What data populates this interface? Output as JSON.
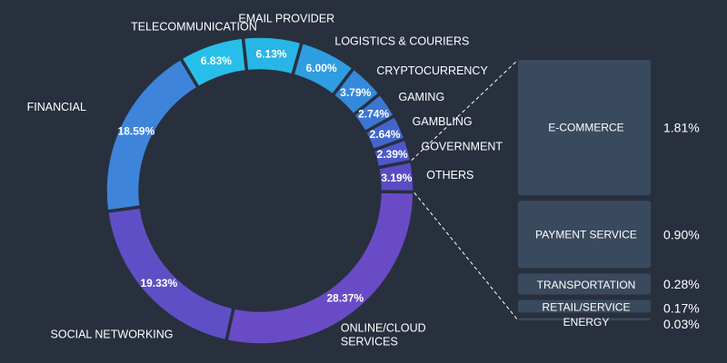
{
  "chart_data": [
    {
      "type": "pie",
      "donut": true,
      "categories": [
        "ONLINE/CLOUD SERVICES",
        "SOCIAL NETWORKING",
        "FINANCIAL",
        "TELECOMMUNICATION",
        "EMAIL PROVIDER",
        "LOGISTICS & COURIERS",
        "CRYPTOCURRENCY",
        "GAMING",
        "GAMBLING",
        "GOVERNMENT",
        "OTHERS"
      ],
      "label_lines": [
        [
          "ONLINE/CLOUD",
          "SERVICES"
        ],
        [
          "SOCIAL NETWORKING"
        ],
        [
          "FINANCIAL"
        ],
        [
          "TELECOMMUNICATION"
        ],
        [
          "EMAIL PROVIDER"
        ],
        [
          "LOGISTICS & COURIERS"
        ],
        [
          "CRYPTOCURRENCY"
        ],
        [
          "GAMING"
        ],
        [
          "GAMBLING"
        ],
        [
          "GOVERNMENT"
        ],
        [
          "OTHERS"
        ]
      ],
      "values": [
        28.37,
        19.33,
        18.59,
        6.83,
        6.13,
        6.0,
        3.79,
        2.74,
        2.64,
        2.39,
        3.19
      ],
      "value_labels": [
        "28.37%",
        "19.33%",
        "18.59%",
        "6.83%",
        "6.13%",
        "6.00%",
        "3.79%",
        "2.74%",
        "2.64%",
        "2.39%",
        "3.19%"
      ],
      "colors": [
        "#6a4bc6",
        "#5f4fc6",
        "#3e84da",
        "#27bfe9",
        "#27b6e6",
        "#2e9ee0",
        "#3489da",
        "#3b76d4",
        "#4366cd",
        "#4d58ca",
        "#5a4cc4"
      ]
    },
    {
      "type": "bar",
      "stacked": true,
      "breakdown_of": "OTHERS",
      "categories": [
        "E-COMMERCE",
        "PAYMENT SERVICE",
        "TRANSPORTATION",
        "RETAIL/SERVICE",
        "ENERGY"
      ],
      "values": [
        1.81,
        0.9,
        0.28,
        0.17,
        0.03
      ],
      "value_labels": [
        "1.81%",
        "0.90%",
        "0.28%",
        "0.17%",
        "0.03%"
      ],
      "color": "#3a4a5e"
    }
  ]
}
